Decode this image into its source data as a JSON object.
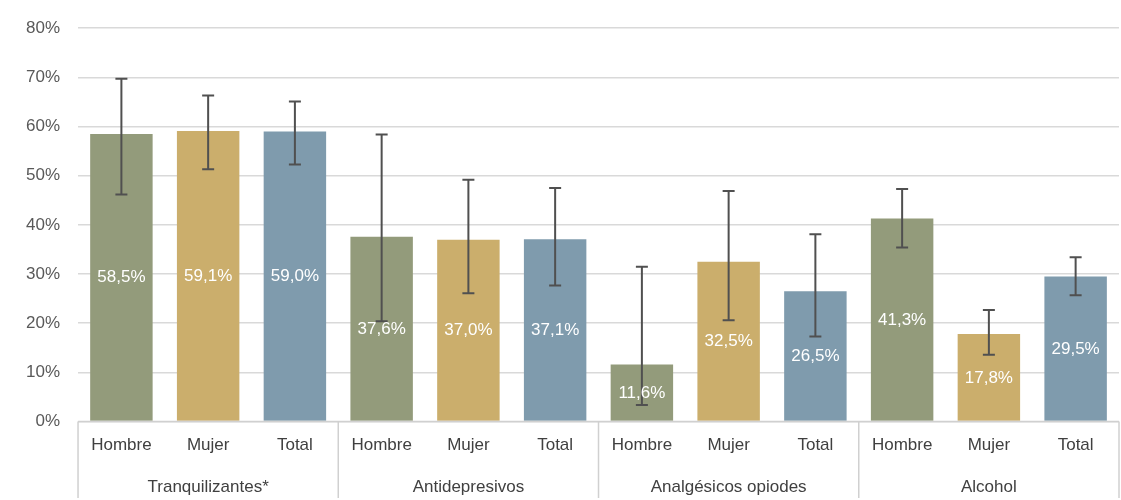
{
  "chart_data": {
    "type": "bar",
    "categories": [
      "Hombre",
      "Mujer",
      "Total",
      "Hombre",
      "Mujer",
      "Total",
      "Hombre",
      "Mujer",
      "Total",
      "Hombre",
      "Mujer",
      "Total"
    ],
    "values": [
      58.5,
      59.1,
      59.0,
      37.6,
      37.0,
      37.1,
      11.6,
      32.5,
      26.5,
      41.3,
      17.8,
      29.5
    ],
    "colors": [
      "#939b7b",
      "#cbae6c",
      "#7f9bad",
      "#939b7b",
      "#cbae6c",
      "#7f9bad",
      "#939b7b",
      "#cbae6c",
      "#7f9bad",
      "#939b7b",
      "#cbae6c",
      "#7f9bad"
    ],
    "errors": [
      [
        46.2,
        69.7
      ],
      [
        51.3,
        66.3
      ],
      [
        52.3,
        65.1
      ],
      [
        20.4,
        58.4
      ],
      [
        26.1,
        49.2
      ],
      [
        27.7,
        47.5
      ],
      [
        3.4,
        31.5
      ],
      [
        20.6,
        46.9
      ],
      [
        17.3,
        38.1
      ],
      [
        35.4,
        47.3
      ],
      [
        13.6,
        22.7
      ],
      [
        25.7,
        33.4
      ]
    ],
    "value_labels": [
      "58,5%",
      "59,1%",
      "59,0%",
      "37,6%",
      "37,0%",
      "37,1%",
      "11,6%",
      "32,5%",
      "26,5%",
      "41,3%",
      "17,8%",
      "29,5%"
    ],
    "annotations": [
      "Tranquilizantes*",
      "Antidepresivos",
      "Analgésicos opiodes",
      "Alcohol"
    ],
    "ylim": [
      0,
      80
    ],
    "yticks": [
      {
        "value": 0,
        "label": "0%"
      },
      {
        "value": 10,
        "label": "10%"
      },
      {
        "value": 20,
        "label": "20%"
      },
      {
        "value": 30,
        "label": "30%"
      },
      {
        "value": 40,
        "label": "40%"
      },
      {
        "value": 50,
        "label": "50%"
      },
      {
        "value": 60,
        "label": "60%"
      },
      {
        "value": 70,
        "label": "70%"
      },
      {
        "value": 80,
        "label": "80%"
      }
    ],
    "grid": "y",
    "legend": false
  }
}
